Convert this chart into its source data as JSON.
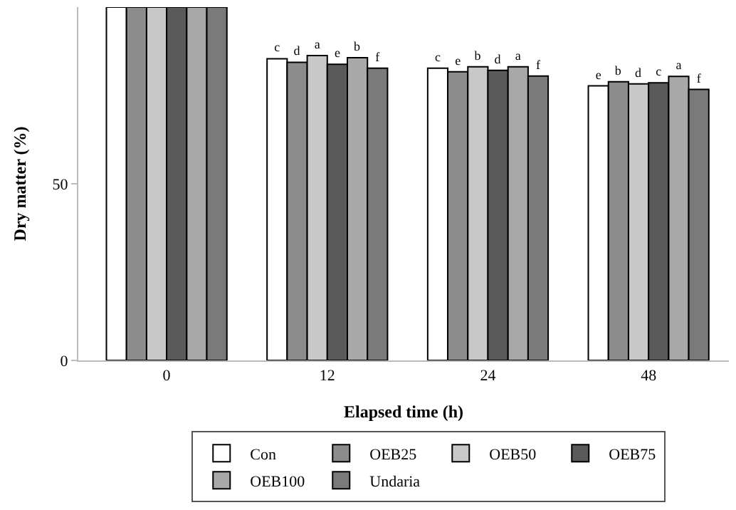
{
  "chart_data": {
    "type": "bar",
    "xlabel": "Elapsed time (h)",
    "ylabel": "Dry matter (%)",
    "categories": [
      "0",
      "12",
      "24",
      "48"
    ],
    "series": [
      {
        "name": "Con",
        "color": "#ffffff",
        "values": [
          100,
          85.4,
          82.7,
          77.7
        ],
        "value_labels": [
          null,
          "c",
          "c",
          "e"
        ]
      },
      {
        "name": "OEB25",
        "color": "#8c8c8c",
        "values": [
          100,
          84.4,
          81.7,
          78.9
        ],
        "value_labels": [
          null,
          "d",
          "e",
          "b"
        ]
      },
      {
        "name": "OEB50",
        "color": "#c8c8c8",
        "values": [
          100,
          86.3,
          83.1,
          78.3
        ],
        "value_labels": [
          null,
          "a",
          "b",
          "d"
        ]
      },
      {
        "name": "OEB75",
        "color": "#5a5a5a",
        "values": [
          100,
          83.8,
          82.1,
          78.6
        ],
        "value_labels": [
          null,
          "e",
          "d",
          "c"
        ]
      },
      {
        "name": "OEB100",
        "color": "#a8a8a8",
        "values": [
          100,
          85.7,
          83.1,
          80.4
        ],
        "value_labels": [
          null,
          "b",
          "a",
          "a"
        ]
      },
      {
        "name": "Undaria",
        "color": "#7a7a7a",
        "values": [
          100,
          82.7,
          80.5,
          76.7
        ],
        "value_labels": [
          null,
          "f",
          "f",
          "f"
        ]
      }
    ],
    "ylim": [
      0,
      100
    ],
    "yticks": [
      0,
      50
    ],
    "legend": "bottom"
  }
}
